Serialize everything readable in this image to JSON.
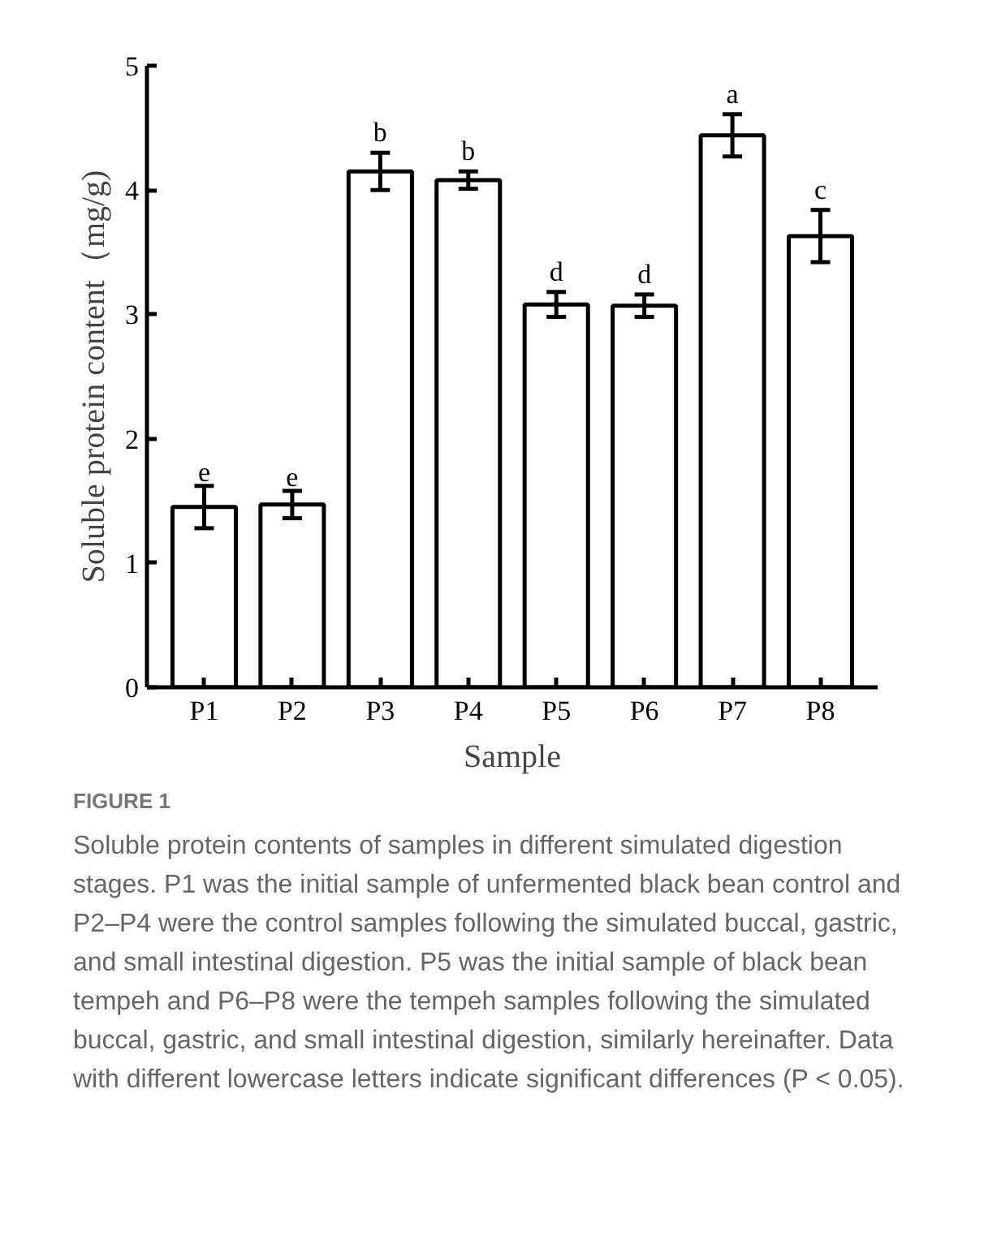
{
  "chart_data": {
    "type": "bar",
    "xlabel": "Sample",
    "ylabel": "Soluble protein content（mg/g)",
    "categories": [
      "P1",
      "P2",
      "P3",
      "P4",
      "P5",
      "P6",
      "P7",
      "P8"
    ],
    "values": [
      1.45,
      1.47,
      4.15,
      4.08,
      3.08,
      3.07,
      4.44,
      3.63
    ],
    "errors": [
      0.17,
      0.11,
      0.15,
      0.07,
      0.1,
      0.09,
      0.17,
      0.21
    ],
    "color": "#ffffff",
    "ylim": [
      0,
      5
    ],
    "yticks": [
      0,
      1,
      2,
      3,
      4,
      5
    ],
    "grid": false,
    "annotations": [
      {
        "text": "e",
        "x": "P1",
        "y": 1.62
      },
      {
        "text": "e",
        "x": "P2",
        "y": 1.58
      },
      {
        "text": "b",
        "x": "P3",
        "y": 4.3
      },
      {
        "text": "b",
        "x": "P4",
        "y": 4.15
      },
      {
        "text": "d",
        "x": "P5",
        "y": 3.18
      },
      {
        "text": "d",
        "x": "P6",
        "y": 3.16
      },
      {
        "text": "a",
        "x": "P7",
        "y": 4.61
      },
      {
        "text": "c",
        "x": "P8",
        "y": 3.84
      },
      "FIGURE 1",
      "Soluble protein contents of samples in different simulated digestion stages. P1 was the initial sample of unfermented black bean control and P2–P4 were the control samples following the simulated buccal, gastric, and small intestinal digestion. P5 was the initial sample of black bean tempeh and P6–P8 were the tempeh samples following the simulated buccal, gastric, and small intestinal digestion, similarly hereinafter. Data with different lowercase letters indicate significant differences (P < 0.05)."
    ]
  }
}
